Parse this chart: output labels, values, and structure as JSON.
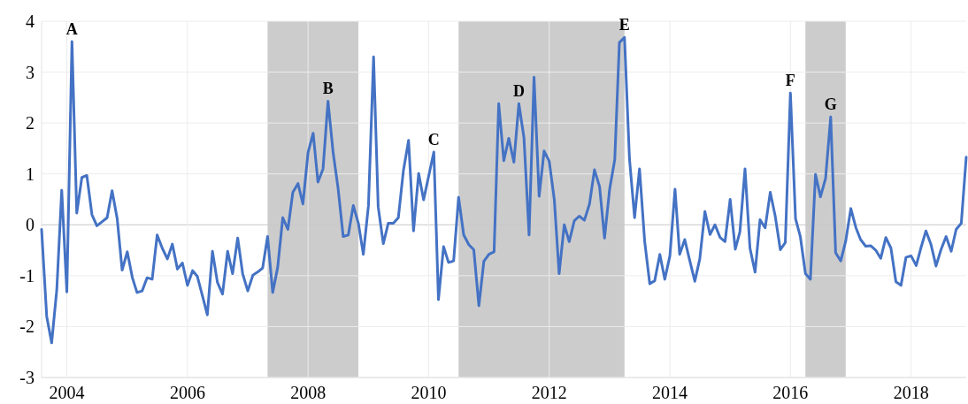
{
  "chart_data": {
    "type": "line",
    "x": [
      "2003-08",
      "2003-09",
      "2003-10",
      "2003-11",
      "2003-12",
      "2004-01",
      "2004-02",
      "2004-03",
      "2004-04",
      "2004-05",
      "2004-06",
      "2004-07",
      "2004-08",
      "2004-09",
      "2004-10",
      "2004-11",
      "2004-12",
      "2005-01",
      "2005-02",
      "2005-03",
      "2005-04",
      "2005-05",
      "2005-06",
      "2005-07",
      "2005-08",
      "2005-09",
      "2005-10",
      "2005-11",
      "2005-12",
      "2006-01",
      "2006-02",
      "2006-03",
      "2006-04",
      "2006-05",
      "2006-06",
      "2006-07",
      "2006-08",
      "2006-09",
      "2006-10",
      "2006-11",
      "2006-12",
      "2007-01",
      "2007-02",
      "2007-03",
      "2007-04",
      "2007-05",
      "2007-06",
      "2007-07",
      "2007-08",
      "2007-09",
      "2007-10",
      "2007-11",
      "2007-12",
      "2008-01",
      "2008-02",
      "2008-03",
      "2008-04",
      "2008-05",
      "2008-06",
      "2008-07",
      "2008-08",
      "2008-09",
      "2008-10",
      "2008-11",
      "2008-12",
      "2009-01",
      "2009-02",
      "2009-03",
      "2009-04",
      "2009-05",
      "2009-06",
      "2009-07",
      "2009-08",
      "2009-09",
      "2009-10",
      "2009-11",
      "2009-12",
      "2010-01",
      "2010-02",
      "2010-03",
      "2010-04",
      "2010-05",
      "2010-06",
      "2010-07",
      "2010-08",
      "2010-09",
      "2010-10",
      "2010-11",
      "2010-12",
      "2011-01",
      "2011-02",
      "2011-03",
      "2011-04",
      "2011-05",
      "2011-06",
      "2011-07",
      "2011-08",
      "2011-09",
      "2011-10",
      "2011-11",
      "2011-12",
      "2012-01",
      "2012-02",
      "2012-03",
      "2012-04",
      "2012-05",
      "2012-06",
      "2012-07",
      "2012-08",
      "2012-09",
      "2012-10",
      "2012-11",
      "2012-12",
      "2013-01",
      "2013-02",
      "2013-03",
      "2013-04",
      "2013-05",
      "2013-06",
      "2013-07",
      "2013-08",
      "2013-09",
      "2013-10",
      "2013-11",
      "2013-12",
      "2014-01",
      "2014-02",
      "2014-03",
      "2014-04",
      "2014-05",
      "2014-06",
      "2014-07",
      "2014-08",
      "2014-09",
      "2014-10",
      "2014-11",
      "2014-12",
      "2015-01",
      "2015-02",
      "2015-03",
      "2015-04",
      "2015-05",
      "2015-06",
      "2015-07",
      "2015-08",
      "2015-09",
      "2015-10",
      "2015-11",
      "2015-12",
      "2016-01",
      "2016-02",
      "2016-03",
      "2016-04",
      "2016-05",
      "2016-06",
      "2016-07",
      "2016-08",
      "2016-09",
      "2016-10",
      "2016-11",
      "2016-12",
      "2017-01",
      "2017-02",
      "2017-03",
      "2017-04",
      "2017-05",
      "2017-06",
      "2017-07",
      "2017-08",
      "2017-09",
      "2017-10",
      "2017-11",
      "2017-12",
      "2018-01",
      "2018-02",
      "2018-03",
      "2018-04",
      "2018-05",
      "2018-06",
      "2018-07",
      "2018-08",
      "2018-09",
      "2018-10",
      "2018-11",
      "2018-12"
    ],
    "series": [
      {
        "color": "#4472c4",
        "values": [
          -0.09,
          -1.8,
          -2.32,
          -1.28,
          0.68,
          -1.32,
          3.6,
          0.23,
          0.93,
          0.97,
          0.2,
          -0.02,
          0.06,
          0.14,
          0.67,
          0.12,
          -0.89,
          -0.53,
          -1.04,
          -1.33,
          -1.3,
          -1.04,
          -1.07,
          -0.2,
          -0.46,
          -0.67,
          -0.38,
          -0.87,
          -0.75,
          -1.19,
          -0.9,
          -1.01,
          -1.39,
          -1.77,
          -0.52,
          -1.13,
          -1.36,
          -0.52,
          -0.96,
          -0.26,
          -0.96,
          -1.3,
          -0.99,
          -0.93,
          -0.85,
          -0.23,
          -1.33,
          -0.84,
          0.14,
          -0.09,
          0.64,
          0.81,
          0.41,
          1.42,
          1.8,
          0.84,
          1.1,
          2.43,
          1.42,
          0.72,
          -0.23,
          -0.2,
          0.38,
          0.03,
          -0.58,
          0.38,
          3.3,
          0.35,
          -0.37,
          0.03,
          0.03,
          0.14,
          1.07,
          1.66,
          -0.12,
          1.01,
          0.49,
          0.96,
          1.43,
          -1.47,
          -0.43,
          -0.74,
          -0.71,
          0.54,
          -0.2,
          -0.39,
          -0.49,
          -1.59,
          -0.72,
          -0.58,
          -0.53,
          2.38,
          1.26,
          1.7,
          1.23,
          2.38,
          1.71,
          -0.2,
          2.9,
          0.56,
          1.45,
          1.25,
          0.49,
          -0.96,
          0,
          -0.33,
          0.08,
          0.17,
          0.09,
          0.41,
          1.08,
          0.75,
          -0.26,
          0.7,
          1.28,
          3.58,
          3.68,
          1.3,
          0.14,
          1.1,
          -0.32,
          -1.16,
          -1.1,
          -0.58,
          -1.07,
          -0.61,
          0.7,
          -0.58,
          -0.29,
          -0.7,
          -1.11,
          -0.67,
          0.26,
          -0.19,
          0,
          -0.25,
          -0.33,
          0.5,
          -0.48,
          -0.14,
          1.1,
          -0.46,
          -0.93,
          0.1,
          -0.06,
          0.64,
          0.17,
          -0.49,
          -0.35,
          2.59,
          0.12,
          -0.23,
          -0.96,
          -1.07,
          0.99,
          0.55,
          0.91,
          2.12,
          -0.55,
          -0.71,
          -0.32,
          0.32,
          -0.06,
          -0.29,
          -0.42,
          -0.41,
          -0.5,
          -0.66,
          -0.25,
          -0.46,
          -1.12,
          -1.19,
          -0.64,
          -0.61,
          -0.8,
          -0.46,
          -0.12,
          -0.38,
          -0.81,
          -0.49,
          -0.23,
          -0.52,
          -0.09,
          0.03,
          1.33
        ]
      }
    ],
    "xlim": [
      "2003-08",
      "2018-12"
    ],
    "xticks": [
      {
        "value": "2004-01",
        "label": "2004"
      },
      {
        "value": "2006-01",
        "label": "2006"
      },
      {
        "value": "2008-01",
        "label": "2008"
      },
      {
        "value": "2010-01",
        "label": "2010"
      },
      {
        "value": "2012-01",
        "label": "2012"
      },
      {
        "value": "2014-01",
        "label": "2014"
      },
      {
        "value": "2016-01",
        "label": "2016"
      },
      {
        "value": "2018-01",
        "label": "2018"
      }
    ],
    "ylim": [
      -3,
      4
    ],
    "yticks": [
      -3,
      -2,
      -1,
      0,
      1,
      2,
      3,
      4
    ],
    "grid": true,
    "bands": [
      {
        "axis": "x",
        "from": "2007-05",
        "to": "2008-11",
        "color": "#cccccc"
      },
      {
        "axis": "x",
        "from": "2010-07",
        "to": "2013-04",
        "color": "#cccccc"
      },
      {
        "axis": "x",
        "from": "2016-04",
        "to": "2016-12",
        "color": "#cccccc"
      }
    ],
    "annotations": [
      {
        "text": "A",
        "x": "2004-02",
        "y": 3.6
      },
      {
        "text": "B",
        "x": "2008-05",
        "y": 2.43
      },
      {
        "text": "C",
        "x": "2010-02",
        "y": 1.43
      },
      {
        "text": "D",
        "x": "2011-07",
        "y": 2.38
      },
      {
        "text": "E",
        "x": "2013-04",
        "y": 3.68
      },
      {
        "text": "F",
        "x": "2016-01",
        "y": 2.59
      },
      {
        "text": "G",
        "x": "2016-09",
        "y": 2.12
      }
    ]
  }
}
